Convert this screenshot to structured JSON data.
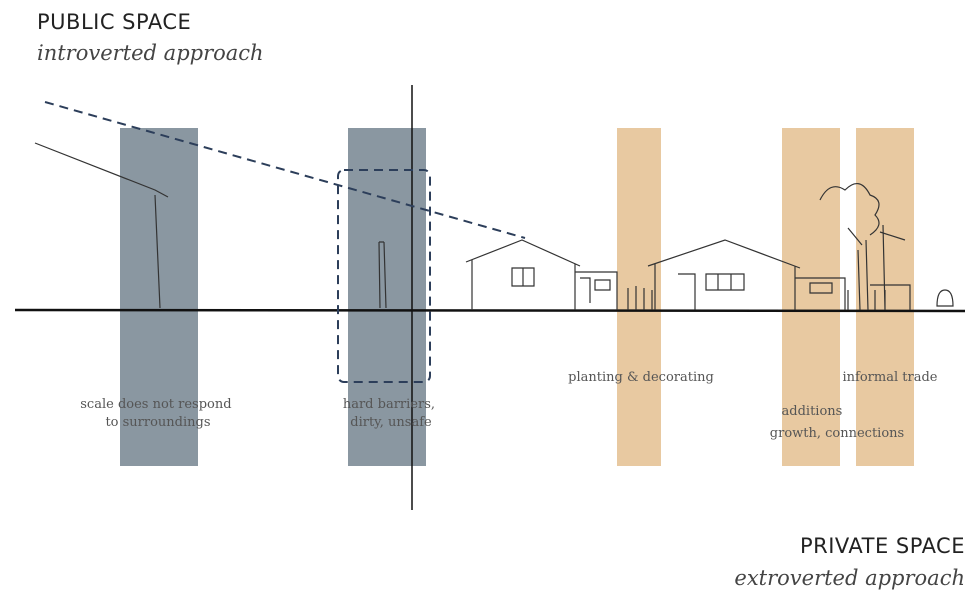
{
  "public": {
    "title": "PUBLIC SPACE",
    "subtitle": "introverted approach"
  },
  "private": {
    "title": "PRIVATE SPACE",
    "subtitle": "extroverted approach"
  },
  "annotations": [
    {
      "lines": [
        "scale does not respond",
        "to surroundings"
      ]
    },
    {
      "lines": [
        "hard barriers,",
        "dirty, unsafe"
      ]
    },
    {
      "lines": [
        "planting & decorating"
      ]
    },
    {
      "lines": [
        "informal trade"
      ]
    },
    {
      "lines": [
        "additions",
        "growth, connections"
      ]
    }
  ]
}
